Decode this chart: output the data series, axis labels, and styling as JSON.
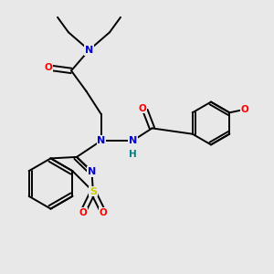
{
  "background_color": "#e8e8e8",
  "atom_colors": {
    "N": "#0000cc",
    "O": "#ff0000",
    "S": "#cccc00",
    "H": "#008080",
    "C": "#000000"
  },
  "bond_color": "#000000",
  "figsize": [
    3.0,
    3.0
  ],
  "dpi": 100
}
